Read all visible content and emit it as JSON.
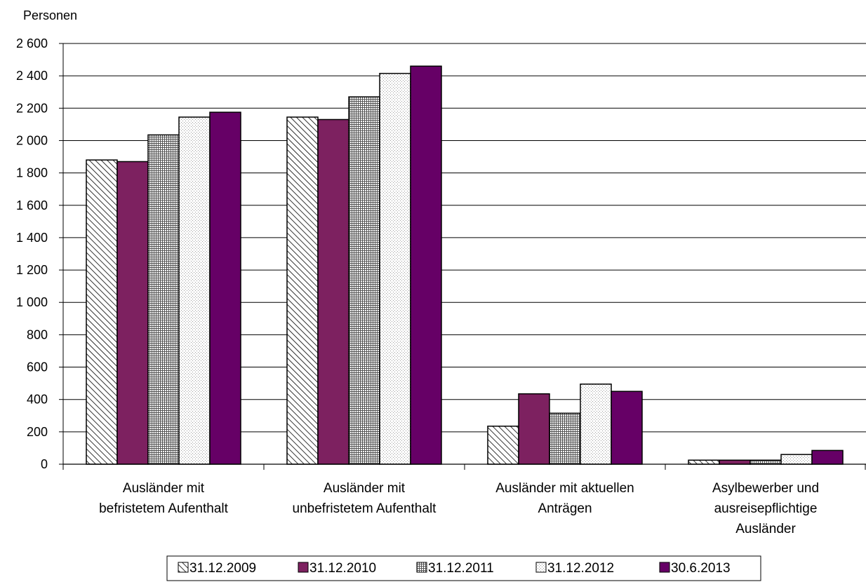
{
  "chart_data": {
    "type": "bar",
    "ylabel": "Personen",
    "ylim": [
      0,
      2600
    ],
    "yticks": [
      0,
      200,
      400,
      600,
      800,
      1000,
      1200,
      1400,
      1600,
      1800,
      2000,
      2200,
      2400,
      2600
    ],
    "ytick_labels": [
      "0",
      "200",
      "400",
      "600",
      "800",
      "1 000",
      "1 200",
      "1 400",
      "1 600",
      "1 800",
      "2 000",
      "2 200",
      "2 400",
      "2 600"
    ],
    "grid": true,
    "legend_position": "bottom",
    "categories": [
      [
        "Ausländer mit",
        "befristetem Aufenthalt"
      ],
      [
        "Ausländer mit",
        "unbefristetem Aufenthalt"
      ],
      [
        "Ausländer mit aktuellen",
        "Anträgen"
      ],
      [
        "Asylbewerber und",
        "ausreisepflichtige",
        "Ausländer"
      ]
    ],
    "series": [
      {
        "name": "31.12.2009",
        "values": [
          1880,
          2145,
          235,
          25
        ],
        "color": "#ffffff",
        "pattern": "diagonal-hatch"
      },
      {
        "name": "31.12.2010",
        "values": [
          1870,
          2130,
          435,
          25
        ],
        "color": "#7d2160",
        "pattern": "solid"
      },
      {
        "name": "31.12.2011",
        "values": [
          2035,
          2270,
          315,
          25
        ],
        "color": "#ffffff",
        "pattern": "grid"
      },
      {
        "name": "31.12.2012",
        "values": [
          2145,
          2415,
          495,
          60
        ],
        "color": "#ffffff",
        "pattern": "dots"
      },
      {
        "name": "30.6.2013",
        "values": [
          2175,
          2460,
          450,
          85
        ],
        "color": "#660066",
        "pattern": "solid"
      }
    ]
  }
}
